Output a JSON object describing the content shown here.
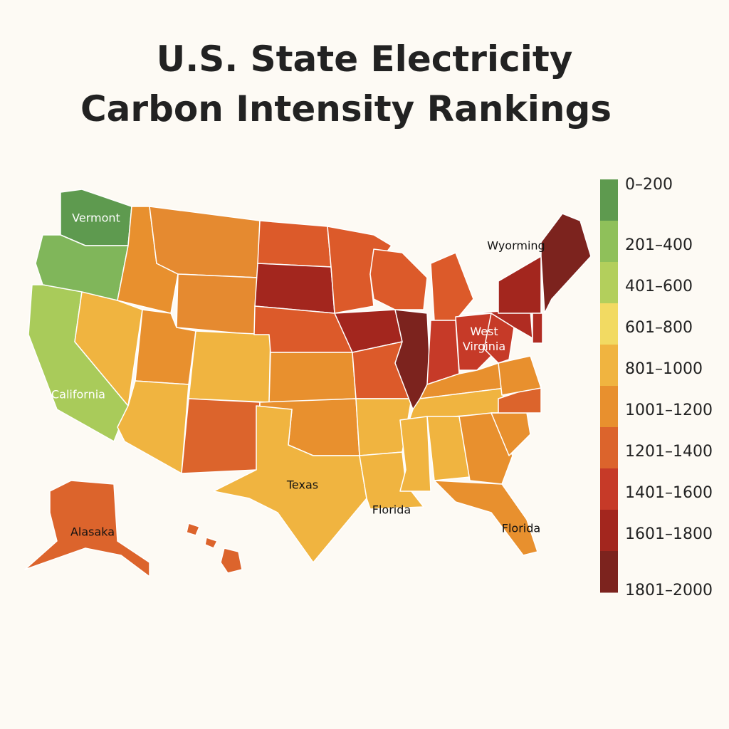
{
  "title": [
    "U.S. State Electricity",
    "Carbon Intensity Rankings"
  ],
  "legend": [
    {
      "label": "0–200",
      "color": "#5e9a4f"
    },
    {
      "label": "201–400",
      "color": "#8fc05a"
    },
    {
      "label": "401–600",
      "color": "#b3cf5c"
    },
    {
      "label": "601–800",
      "color": "#f2da62"
    },
    {
      "label": "801–1000",
      "color": "#f0b440"
    },
    {
      "label": "1001–1200",
      "color": "#e8902e"
    },
    {
      "label": "1201–1400",
      "color": "#dc642c"
    },
    {
      "label": "1401–1600",
      "color": "#c63a28"
    },
    {
      "label": "1601–1800",
      "color": "#a3261e"
    },
    {
      "label": "1801–2000",
      "color": "#7c231e"
    }
  ],
  "map_labels": [
    "Vermont",
    "Wyorming",
    "West Virginia",
    "California",
    "Texas",
    "Florida",
    "Florida",
    "Alasaka"
  ]
}
